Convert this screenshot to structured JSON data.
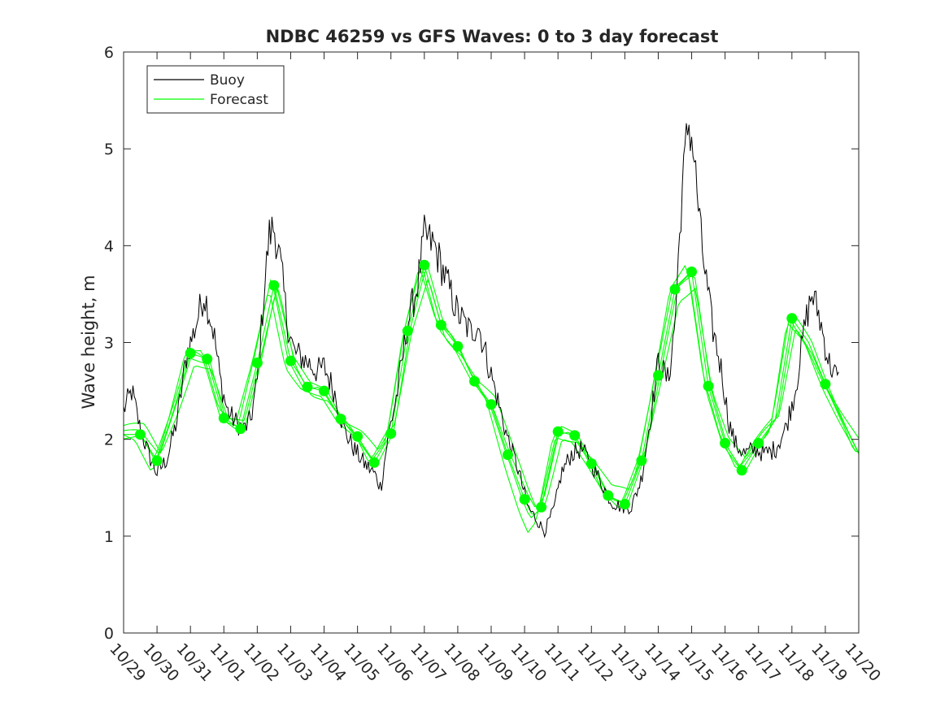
{
  "chart_data": {
    "type": "line",
    "title": "NDBC 46259 vs GFS Waves: 0 to 3 day forecast",
    "xlabel": "",
    "ylabel": "Wave height, m",
    "x_unit": "days since 10/29 00:00",
    "xlim": [
      0,
      22
    ],
    "ylim": [
      0,
      6
    ],
    "y_ticks": [
      0,
      1,
      2,
      3,
      4,
      5,
      6
    ],
    "x_ticks": [
      {
        "x": 0,
        "label": "10/29"
      },
      {
        "x": 1,
        "label": "10/30"
      },
      {
        "x": 2,
        "label": "10/31"
      },
      {
        "x": 3,
        "label": "11/01"
      },
      {
        "x": 4,
        "label": "11/02"
      },
      {
        "x": 5,
        "label": "11/03"
      },
      {
        "x": 6,
        "label": "11/04"
      },
      {
        "x": 7,
        "label": "11/05"
      },
      {
        "x": 8,
        "label": "11/06"
      },
      {
        "x": 9,
        "label": "11/07"
      },
      {
        "x": 10,
        "label": "11/08"
      },
      {
        "x": 11,
        "label": "11/09"
      },
      {
        "x": 12,
        "label": "11/10"
      },
      {
        "x": 13,
        "label": "11/11"
      },
      {
        "x": 14,
        "label": "11/12"
      },
      {
        "x": 15,
        "label": "11/13"
      },
      {
        "x": 16,
        "label": "11/14"
      },
      {
        "x": 17,
        "label": "11/15"
      },
      {
        "x": 18,
        "label": "11/16"
      },
      {
        "x": 19,
        "label": "11/17"
      },
      {
        "x": 20,
        "label": "11/18"
      },
      {
        "x": 21,
        "label": "11/19"
      },
      {
        "x": 22,
        "label": "11/20"
      }
    ],
    "legend": {
      "position": "top-left",
      "entries": [
        "Buoy",
        "Forecast"
      ]
    },
    "colors": {
      "buoy": "#000000",
      "forecast": "#00ff00",
      "axis": "#262626"
    },
    "series": [
      {
        "name": "Buoy",
        "noise_amplitude": 0.12,
        "points": [
          [
            0,
            2.3
          ],
          [
            0.25,
            2.5
          ],
          [
            0.5,
            2.1
          ],
          [
            0.8,
            1.8
          ],
          [
            1.0,
            1.65
          ],
          [
            1.3,
            1.8
          ],
          [
            1.6,
            2.2
          ],
          [
            1.9,
            2.9
          ],
          [
            2.1,
            3.1
          ],
          [
            2.4,
            3.5
          ],
          [
            2.5,
            3.4
          ],
          [
            2.7,
            3.1
          ],
          [
            2.9,
            2.6
          ],
          [
            3.1,
            2.3
          ],
          [
            3.3,
            2.2
          ],
          [
            3.6,
            2.1
          ],
          [
            3.8,
            2.2
          ],
          [
            4.0,
            2.6
          ],
          [
            4.2,
            3.5
          ],
          [
            4.35,
            4.1
          ],
          [
            4.5,
            4.2
          ],
          [
            4.7,
            3.8
          ],
          [
            4.9,
            3.2
          ],
          [
            5.1,
            2.9
          ],
          [
            5.5,
            2.8
          ],
          [
            5.8,
            2.7
          ],
          [
            6.0,
            2.75
          ],
          [
            6.3,
            2.5
          ],
          [
            6.6,
            2.1
          ],
          [
            6.9,
            1.9
          ],
          [
            7.2,
            1.75
          ],
          [
            7.5,
            1.65
          ],
          [
            7.7,
            1.5
          ],
          [
            7.9,
            2.0
          ],
          [
            8.2,
            2.5
          ],
          [
            8.5,
            3.2
          ],
          [
            8.8,
            3.6
          ],
          [
            9.0,
            4.1
          ],
          [
            9.3,
            4.0
          ],
          [
            9.6,
            3.7
          ],
          [
            10.0,
            3.3
          ],
          [
            10.4,
            3.1
          ],
          [
            10.6,
            3.2
          ],
          [
            10.9,
            2.8
          ],
          [
            11.2,
            2.4
          ],
          [
            11.5,
            2.0
          ],
          [
            11.8,
            1.7
          ],
          [
            12.1,
            1.3
          ],
          [
            12.4,
            1.15
          ],
          [
            12.6,
            1.05
          ],
          [
            12.9,
            1.3
          ],
          [
            13.1,
            1.65
          ],
          [
            13.4,
            1.85
          ],
          [
            13.7,
            1.9
          ],
          [
            14.0,
            1.75
          ],
          [
            14.3,
            1.55
          ],
          [
            14.6,
            1.35
          ],
          [
            14.9,
            1.3
          ],
          [
            15.2,
            1.3
          ],
          [
            15.5,
            1.6
          ],
          [
            15.8,
            2.3
          ],
          [
            16.0,
            2.8
          ],
          [
            16.3,
            2.6
          ],
          [
            16.5,
            3.2
          ],
          [
            16.7,
            4.5
          ],
          [
            16.9,
            5.3
          ],
          [
            17.05,
            5.0
          ],
          [
            17.3,
            4.0
          ],
          [
            17.6,
            3.2
          ],
          [
            17.9,
            2.7
          ],
          [
            18.1,
            2.2
          ],
          [
            18.3,
            1.95
          ],
          [
            18.6,
            1.85
          ],
          [
            18.9,
            1.9
          ],
          [
            19.2,
            1.85
          ],
          [
            19.5,
            1.9
          ],
          [
            19.8,
            2.1
          ],
          [
            20.1,
            2.5
          ],
          [
            20.4,
            3.2
          ],
          [
            20.6,
            3.5
          ],
          [
            20.8,
            3.3
          ],
          [
            21.1,
            2.8
          ],
          [
            21.4,
            2.6
          ]
        ]
      },
      {
        "name": "Forecast",
        "points": [
          [
            0.0,
            2.05
          ],
          [
            0.5,
            2.05
          ],
          [
            1.0,
            1.78
          ],
          [
            1.5,
            2.3
          ],
          [
            2.0,
            2.89
          ],
          [
            2.5,
            2.83
          ],
          [
            3.0,
            2.22
          ],
          [
            3.5,
            2.11
          ],
          [
            4.0,
            2.79
          ],
          [
            4.5,
            3.59
          ],
          [
            5.0,
            2.81
          ],
          [
            5.5,
            2.54
          ],
          [
            6.0,
            2.5
          ],
          [
            6.5,
            2.21
          ],
          [
            7.0,
            2.03
          ],
          [
            7.5,
            1.76
          ],
          [
            8.0,
            2.06
          ],
          [
            8.5,
            3.12
          ],
          [
            9.0,
            3.8
          ],
          [
            9.5,
            3.18
          ],
          [
            10.0,
            2.96
          ],
          [
            10.5,
            2.6
          ],
          [
            11.0,
            2.36
          ],
          [
            11.5,
            1.84
          ],
          [
            12.0,
            1.38
          ],
          [
            12.25,
            1.2
          ],
          [
            12.5,
            1.3
          ],
          [
            13.0,
            2.08
          ],
          [
            13.5,
            2.04
          ],
          [
            14.0,
            1.75
          ],
          [
            14.5,
            1.42
          ],
          [
            15.0,
            1.33
          ],
          [
            15.5,
            1.78
          ],
          [
            16.0,
            2.66
          ],
          [
            16.5,
            3.55
          ],
          [
            17.0,
            3.73
          ],
          [
            17.5,
            2.55
          ],
          [
            18.0,
            1.96
          ],
          [
            18.5,
            1.68
          ],
          [
            19.0,
            1.96
          ],
          [
            19.5,
            2.2
          ],
          [
            20.0,
            3.25
          ],
          [
            20.5,
            3.0
          ],
          [
            21.0,
            2.57
          ],
          [
            21.5,
            2.2
          ],
          [
            22.0,
            1.85
          ]
        ],
        "markers": [
          [
            0.5,
            2.05
          ],
          [
            1.0,
            1.78
          ],
          [
            2.0,
            2.89
          ],
          [
            2.5,
            2.83
          ],
          [
            3.0,
            2.22
          ],
          [
            3.5,
            2.11
          ],
          [
            4.0,
            2.79
          ],
          [
            4.5,
            3.59
          ],
          [
            5.0,
            2.81
          ],
          [
            5.5,
            2.54
          ],
          [
            6.0,
            2.5
          ],
          [
            6.5,
            2.21
          ],
          [
            7.0,
            2.03
          ],
          [
            7.5,
            1.76
          ],
          [
            8.0,
            2.06
          ],
          [
            8.5,
            3.12
          ],
          [
            9.0,
            3.8
          ],
          [
            9.5,
            3.18
          ],
          [
            10.0,
            2.96
          ],
          [
            10.5,
            2.6
          ],
          [
            11.0,
            2.36
          ],
          [
            11.5,
            1.84
          ],
          [
            12.0,
            1.38
          ],
          [
            12.5,
            1.3
          ],
          [
            13.0,
            2.08
          ],
          [
            13.5,
            2.04
          ],
          [
            14.0,
            1.75
          ],
          [
            14.5,
            1.42
          ],
          [
            15.0,
            1.33
          ],
          [
            15.5,
            1.78
          ],
          [
            16.0,
            2.66
          ],
          [
            16.5,
            3.55
          ],
          [
            17.0,
            3.73
          ],
          [
            17.5,
            2.55
          ],
          [
            18.0,
            1.96
          ],
          [
            18.5,
            1.68
          ],
          [
            19.0,
            1.96
          ],
          [
            20.0,
            3.25
          ],
          [
            21.0,
            2.57
          ]
        ]
      }
    ]
  }
}
